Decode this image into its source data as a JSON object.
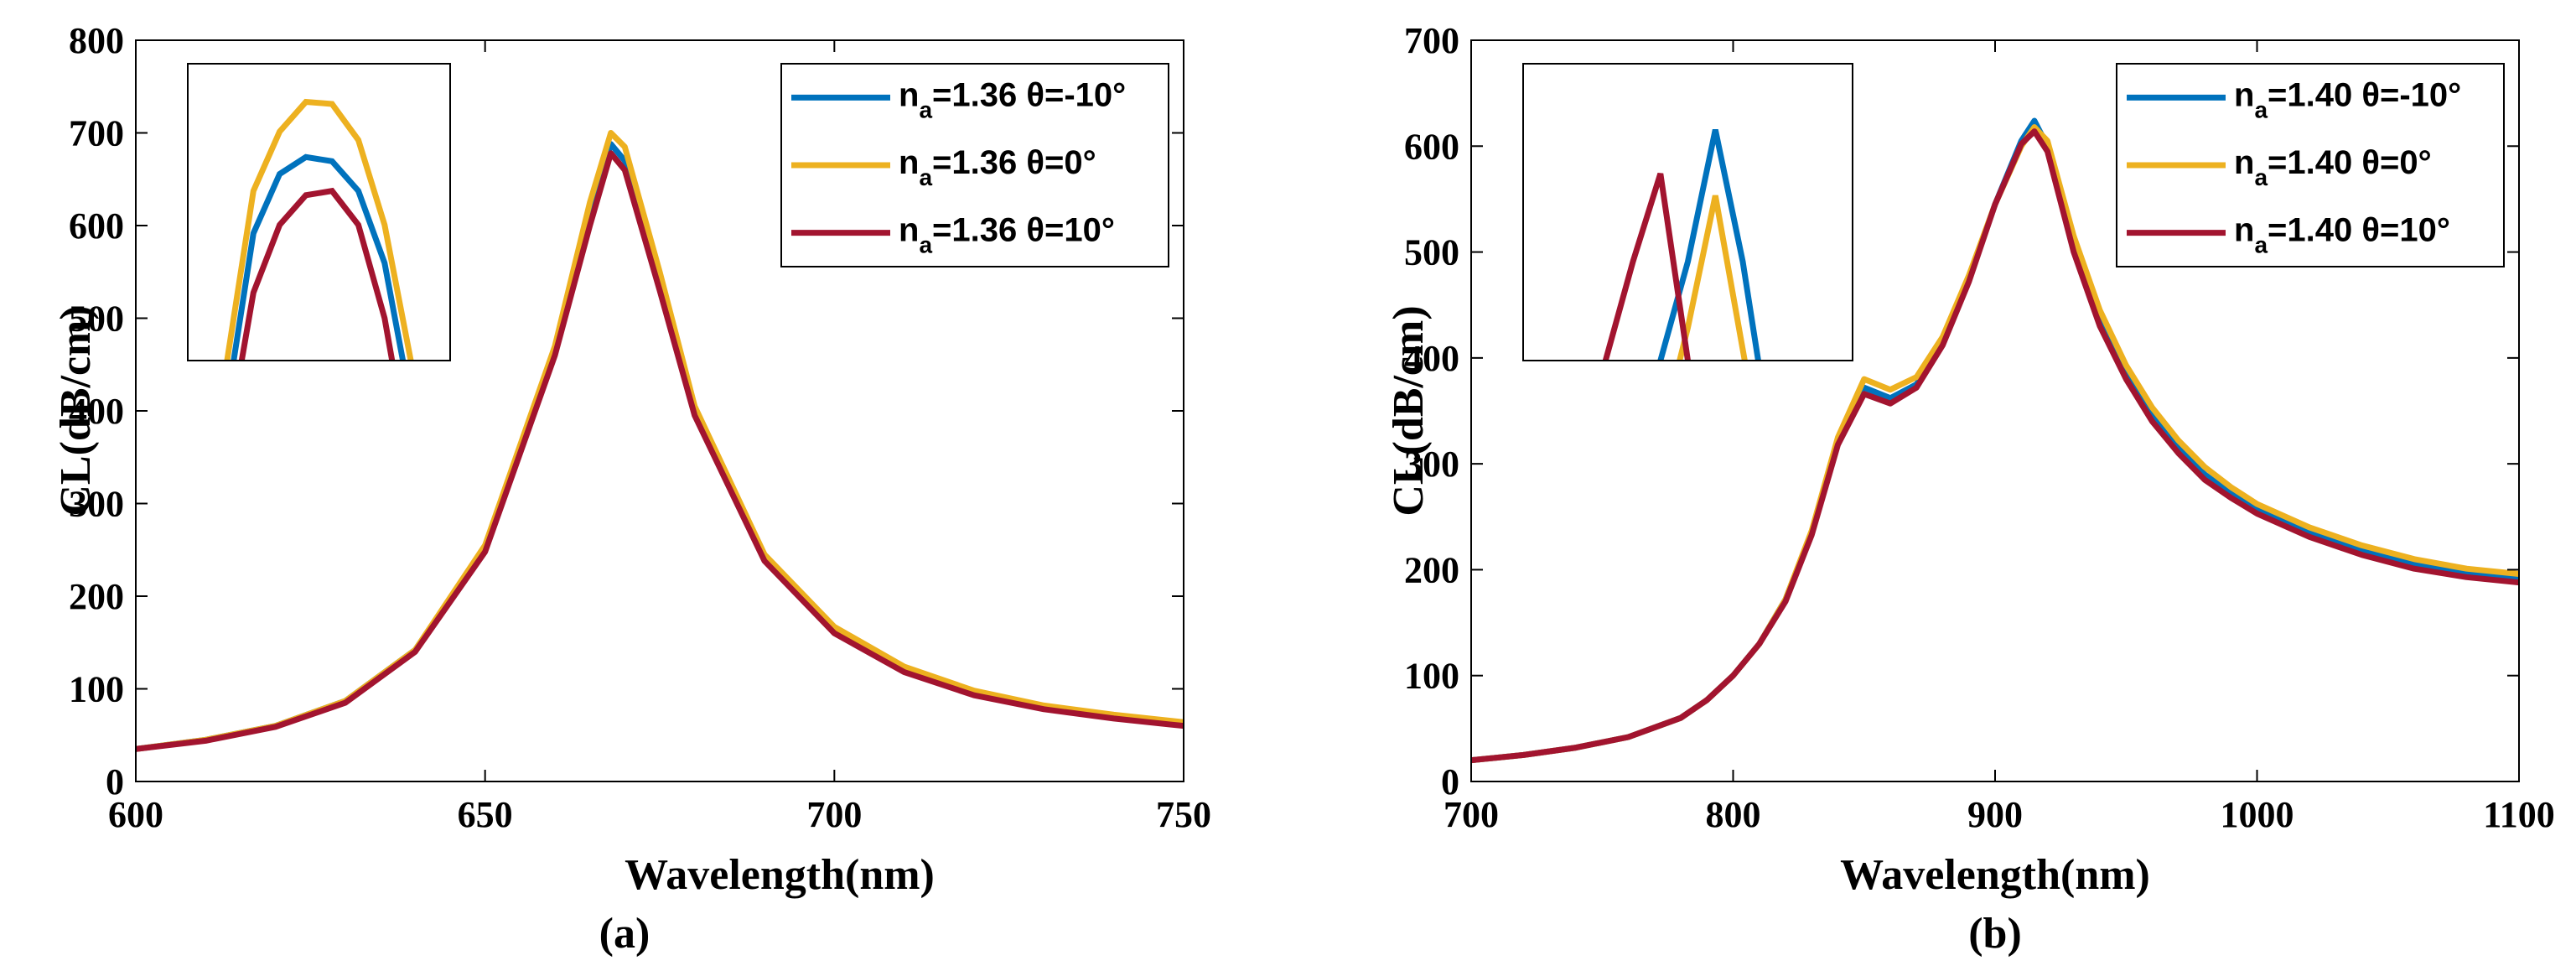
{
  "colors": {
    "blue": "#0072BD",
    "yellow": "#EDB120",
    "red": "#A2142F",
    "axis": "#000000",
    "background": "#ffffff"
  },
  "chart_data": [
    {
      "type": "line",
      "panel_label": "(a)",
      "xlabel": "Wavelength(nm)",
      "ylabel": "CL(dB/cm)",
      "xlim": [
        600,
        750
      ],
      "ylim": [
        0,
        800
      ],
      "xticks": [
        600,
        650,
        700,
        750
      ],
      "yticks": [
        0,
        100,
        200,
        300,
        400,
        500,
        600,
        700,
        800
      ],
      "grid": false,
      "legend_position": "top-right",
      "series": [
        {
          "name": "n_a=1.36 θ=-10°",
          "legend_main": "n",
          "legend_sub": "a",
          "legend_rest": "=1.36 θ=-10°",
          "color": "#0072BD",
          "x": [
            600,
            610,
            620,
            630,
            640,
            650,
            660,
            665,
            668,
            670,
            675,
            680,
            690,
            700,
            710,
            720,
            730,
            740,
            750
          ],
          "y": [
            35,
            45,
            60,
            87,
            142,
            252,
            465,
            610,
            688,
            670,
            540,
            400,
            240,
            163,
            120,
            95,
            80,
            70,
            62
          ]
        },
        {
          "name": "n_a=1.36 θ=0°",
          "legend_main": "n",
          "legend_sub": "a",
          "legend_rest": "=1.36 θ=0°",
          "color": "#EDB120",
          "x": [
            600,
            610,
            620,
            630,
            640,
            650,
            660,
            665,
            668,
            670,
            675,
            680,
            690,
            700,
            710,
            720,
            730,
            740,
            750
          ],
          "y": [
            35,
            45,
            60,
            87,
            142,
            255,
            470,
            625,
            700,
            685,
            550,
            405,
            245,
            167,
            124,
            98,
            82,
            72,
            64
          ]
        },
        {
          "name": "n_a=1.36 θ=10°",
          "legend_main": "n",
          "legend_sub": "a",
          "legend_rest": "=1.36 θ=10°",
          "color": "#A2142F",
          "x": [
            600,
            610,
            620,
            630,
            640,
            650,
            660,
            665,
            668,
            670,
            675,
            680,
            690,
            700,
            710,
            720,
            730,
            740,
            750
          ],
          "y": [
            35,
            44,
            59,
            85,
            140,
            248,
            460,
            600,
            678,
            660,
            530,
            395,
            238,
            160,
            118,
            93,
            78,
            68,
            60
          ]
        }
      ],
      "inset": {
        "xlim": [
          663.5,
          673.5
        ],
        "ylim": [
          640,
          710
        ],
        "series": [
          {
            "color": "#0072BD",
            "x": [
              665,
              666,
              667,
              668,
              669,
              670,
              671,
              672
            ],
            "y": [
              630,
              670,
              684,
              688,
              687,
              680,
              663,
              630
            ]
          },
          {
            "color": "#EDB120",
            "x": [
              665,
              666,
              667,
              668,
              669,
              670,
              671,
              672
            ],
            "y": [
              640,
              680,
              694,
              701,
              700.5,
              692,
              672,
              640
            ]
          },
          {
            "color": "#A2142F",
            "x": [
              665,
              666,
              667,
              668,
              669,
              670,
              671,
              672
            ],
            "y": [
              620,
              656,
              672,
              679,
              680,
              672,
              650,
              615
            ]
          }
        ]
      }
    },
    {
      "type": "line",
      "panel_label": "(b)",
      "xlabel": "Wavelength(nm)",
      "ylabel": "CL(dB/cm)",
      "xlim": [
        700,
        1100
      ],
      "ylim": [
        0,
        700
      ],
      "xticks": [
        700,
        800,
        900,
        1000,
        1100
      ],
      "yticks": [
        0,
        100,
        200,
        300,
        400,
        500,
        600,
        700
      ],
      "grid": false,
      "legend_position": "top-right",
      "series": [
        {
          "name": "n_a=1.40 θ=-10°",
          "legend_main": "n",
          "legend_sub": "a",
          "legend_rest": "=1.40 θ=-10°",
          "color": "#0072BD",
          "x": [
            700,
            720,
            740,
            760,
            780,
            790,
            800,
            810,
            820,
            830,
            840,
            850,
            860,
            870,
            880,
            890,
            900,
            910,
            915,
            920,
            930,
            940,
            950,
            960,
            970,
            980,
            990,
            1000,
            1020,
            1040,
            1060,
            1080,
            1100
          ],
          "y": [
            20,
            25,
            32,
            42,
            60,
            77,
            100,
            130,
            172,
            235,
            320,
            372,
            362,
            375,
            415,
            475,
            545,
            605,
            624,
            600,
            505,
            435,
            385,
            345,
            315,
            290,
            272,
            257,
            235,
            218,
            205,
            197,
            192
          ]
        },
        {
          "name": "n_a=1.40 θ=0°",
          "legend_main": "n",
          "legend_sub": "a",
          "legend_rest": "=1.40 θ=0°",
          "color": "#EDB120",
          "x": [
            700,
            720,
            740,
            760,
            780,
            790,
            800,
            810,
            820,
            830,
            840,
            850,
            860,
            870,
            880,
            890,
            900,
            910,
            915,
            920,
            930,
            940,
            950,
            960,
            970,
            980,
            990,
            1000,
            1020,
            1040,
            1060,
            1080,
            1100
          ],
          "y": [
            20,
            25,
            32,
            42,
            60,
            77,
            100,
            130,
            172,
            237,
            325,
            380,
            370,
            382,
            420,
            478,
            545,
            600,
            618,
            605,
            515,
            445,
            393,
            353,
            322,
            297,
            278,
            262,
            240,
            223,
            210,
            201,
            196
          ]
        },
        {
          "name": "n_a=1.40 θ=10°",
          "legend_main": "n",
          "legend_sub": "a",
          "legend_rest": "=1.40 θ=10°",
          "color": "#A2142F",
          "x": [
            700,
            720,
            740,
            760,
            780,
            790,
            800,
            810,
            820,
            830,
            840,
            850,
            860,
            870,
            880,
            890,
            900,
            910,
            915,
            920,
            930,
            940,
            950,
            960,
            970,
            980,
            990,
            1000,
            1020,
            1040,
            1060,
            1080,
            1100
          ],
          "y": [
            20,
            25,
            32,
            42,
            60,
            77,
            100,
            130,
            170,
            233,
            318,
            366,
            357,
            372,
            412,
            472,
            545,
            602,
            614,
            595,
            500,
            430,
            380,
            340,
            310,
            285,
            268,
            253,
            231,
            214,
            201,
            193,
            188
          ]
        }
      ],
      "inset": {
        "xlim": [
          901,
          925
        ],
        "ylim": [
          603,
          630
        ],
        "series": [
          {
            "color": "#0072BD",
            "x": [
              911,
              913,
              915,
              917,
              919
            ],
            "y": [
              603,
              612,
              624,
              612,
              596
            ]
          },
          {
            "color": "#EDB120",
            "x": [
              911,
              913,
              915,
              917,
              919
            ],
            "y": [
              596,
              606,
              618,
              604,
              590
            ]
          },
          {
            "color": "#A2142F",
            "x": [
              907,
              909,
              911,
              913,
              915
            ],
            "y": [
              603,
              612,
              620,
              603,
              590
            ]
          }
        ]
      }
    }
  ]
}
